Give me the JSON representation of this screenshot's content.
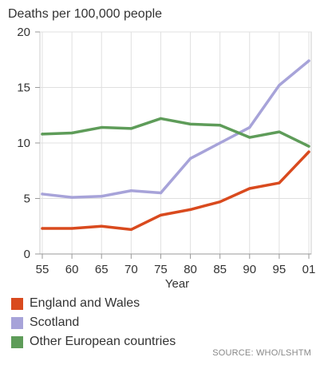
{
  "chart_data": {
    "type": "line",
    "title": "Deaths per 100,000 people",
    "xlabel": "Year",
    "ylabel": "",
    "categories": [
      "55",
      "60",
      "65",
      "70",
      "75",
      "80",
      "85",
      "90",
      "95",
      "01"
    ],
    "yticks": [
      "0",
      "5",
      "10",
      "15",
      "20"
    ],
    "ylim": [
      0,
      20
    ],
    "grid": true,
    "legend_position": "bottom",
    "series": [
      {
        "name": "England and Wales",
        "color": "#d94a1e",
        "values": [
          2.3,
          2.3,
          2.5,
          2.2,
          3.5,
          4.0,
          4.7,
          5.9,
          6.4,
          9.2
        ]
      },
      {
        "name": "Scotland",
        "color": "#a7a3d9",
        "values": [
          5.4,
          5.1,
          5.2,
          5.7,
          5.5,
          8.6,
          10.0,
          11.4,
          15.2,
          17.4
        ]
      },
      {
        "name": "Other European countries",
        "color": "#5e9c59",
        "values": [
          10.8,
          10.9,
          11.4,
          11.3,
          12.2,
          11.7,
          11.6,
          10.5,
          11.0,
          9.7
        ]
      }
    ],
    "source": "SOURCE: WHO/LSHTM"
  }
}
